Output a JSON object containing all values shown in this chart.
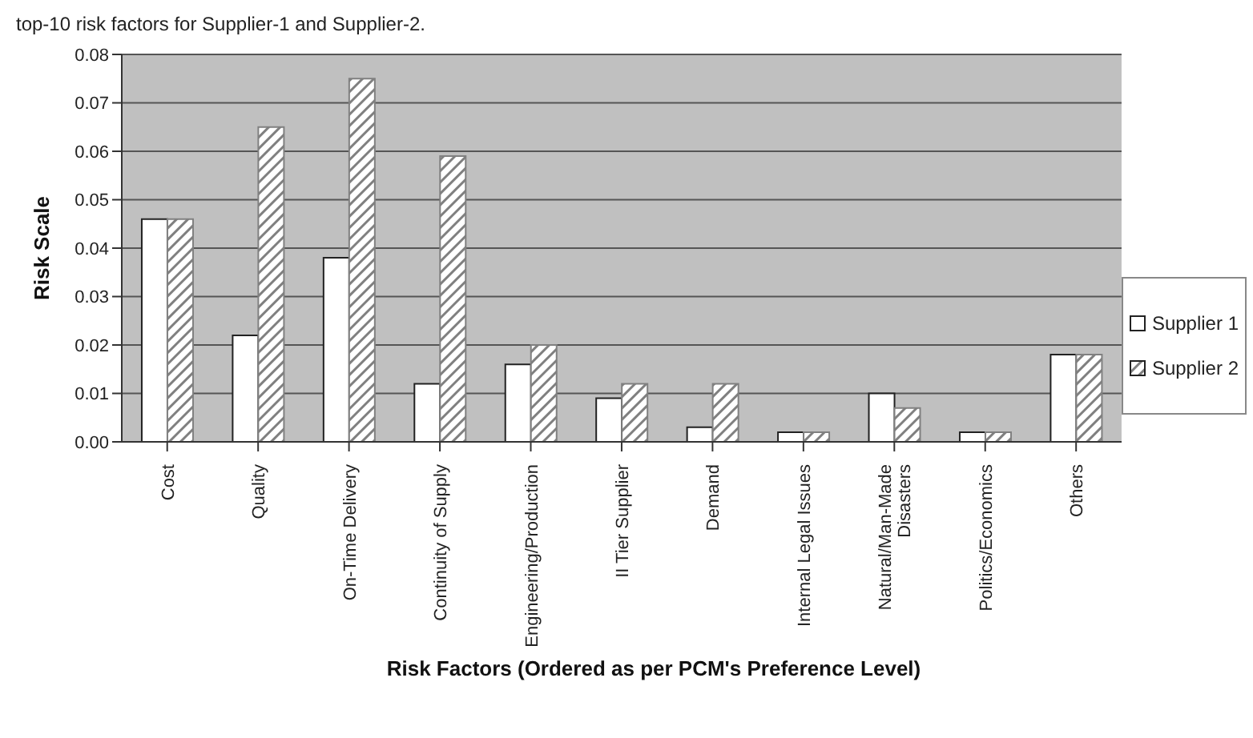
{
  "chart_data": {
    "type": "bar",
    "title": "top-10 risk factors for Supplier-1 and Supplier-2.",
    "xlabel": "Risk Factors (Ordered as per PCM's Preference Level)",
    "ylabel": "Risk Scale",
    "categories": [
      "Cost",
      "Quality",
      "On-Time Delivery",
      "Continuity of Supply",
      "Engineering/Production",
      "II Tier Supplier",
      "Demand",
      "Internal Legal Issues",
      "Natural/Man-Made Disasters",
      "Politics/Economics",
      "Others"
    ],
    "series": [
      {
        "name": "Supplier 1",
        "color": "#ffffff",
        "values": [
          0.046,
          0.022,
          0.038,
          0.012,
          0.016,
          0.009,
          0.003,
          0.002,
          0.01,
          0.002,
          0.018
        ]
      },
      {
        "name": "Supplier 2",
        "color": "#808080",
        "values": [
          0.046,
          0.065,
          0.075,
          0.059,
          0.02,
          0.012,
          0.012,
          0.002,
          0.007,
          0.002,
          0.018
        ]
      }
    ],
    "ylim": [
      0,
      0.08
    ],
    "yticks": [
      {
        "value": 0,
        "label": "0.00"
      },
      {
        "value": 0.01,
        "label": "0.01"
      },
      {
        "value": 0.02,
        "label": "0.02"
      },
      {
        "value": 0.03,
        "label": "0.03"
      },
      {
        "value": 0.04,
        "label": "0.04"
      },
      {
        "value": 0.05,
        "label": "0.05"
      },
      {
        "value": 0.06,
        "label": "0.06"
      },
      {
        "value": 0.07,
        "label": "0.07"
      },
      {
        "value": 0.08,
        "label": "0.08"
      }
    ],
    "grid": "y",
    "legend": "right"
  }
}
